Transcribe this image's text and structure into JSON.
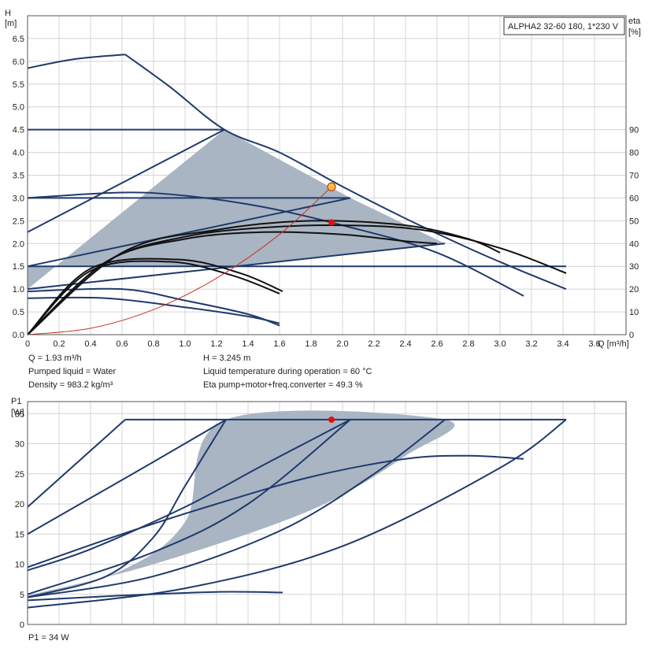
{
  "colors": {
    "curve": "#1f3a6b",
    "shade": "#a9b5c3",
    "grid": "#d4d4d4",
    "frame": "#555555",
    "black_curve": "#111111",
    "system_curve": "#cc3322",
    "operating_point": "#e01010",
    "marker_fill": "#f5c43c"
  },
  "title_box": "ALPHA2 32-60 180, 1*230 V",
  "info": {
    "q": "Q = 1.93 m³/h",
    "h": "H = 3.245 m",
    "pumped_liquid": "Pumped liquid = Water",
    "liquid_temp": "Liquid temperature during operation = 60 °C",
    "density": "Density = 983.2 kg/m³",
    "eta_total": "Eta pump+motor+freq.converter = 49.3 %",
    "p1": "P1 = 34 W"
  },
  "chart_data": [
    {
      "type": "line",
      "name": "head",
      "ylabel_lines": [
        "H",
        "[m]"
      ],
      "y2label_lines": [
        "eta",
        "[%]"
      ],
      "xlabel": "Q [m³/h]",
      "xlim": [
        0,
        3.8
      ],
      "xticks": [
        "0",
        "0.2",
        "0.4",
        "0.6",
        "0.8",
        "1.0",
        "1.2",
        "1.4",
        "1.6",
        "1.8",
        "2.0",
        "2.2",
        "2.4",
        "2.6",
        "2.8",
        "3.0",
        "3.2",
        "3.4",
        "3.6"
      ],
      "ylim": [
        0,
        7.0
      ],
      "yticks": [
        "0.0",
        "0.5",
        "1.0",
        "1.5",
        "2.0",
        "2.5",
        "3.0",
        "3.5",
        "4.0",
        "4.5",
        "5.0",
        "5.5",
        "6.0",
        "6.5"
      ],
      "y2lim": [
        0,
        140
      ],
      "y2ticks": [
        "0",
        "10",
        "20",
        "30",
        "40",
        "50",
        "60",
        "70",
        "80",
        "90"
      ],
      "grid": true,
      "shaded_region": [
        [
          0,
          1.0
        ],
        [
          1.25,
          4.5
        ],
        [
          2.05,
          3.0
        ],
        [
          2.65,
          2.0
        ],
        [
          1.3,
          1.5
        ],
        [
          0,
          1.5
        ]
      ],
      "head_curves": [
        {
          "x": [
            0,
            0.3,
            0.62
          ],
          "y": [
            5.85,
            6.05,
            6.15
          ]
        },
        {
          "x": [
            0.62,
            0.9,
            1.25,
            1.6,
            2.0,
            2.4,
            2.8,
            3.1,
            3.42
          ],
          "y": [
            6.15,
            5.45,
            4.5,
            4.0,
            3.25,
            2.55,
            1.9,
            1.45,
            1.0
          ]
        },
        {
          "x": [
            0,
            1.25
          ],
          "y": [
            4.5,
            4.5
          ]
        },
        {
          "x": [
            0,
            1.25
          ],
          "y": [
            2.25,
            4.5
          ]
        },
        {
          "x": [
            0,
            0.6,
            1.0,
            1.5,
            2.0,
            2.6,
            3.15
          ],
          "y": [
            3.0,
            3.12,
            3.05,
            2.8,
            2.4,
            1.8,
            0.85
          ]
        },
        {
          "x": [
            0,
            2.05
          ],
          "y": [
            3.0,
            3.0
          ]
        },
        {
          "x": [
            0,
            2.05
          ],
          "y": [
            1.5,
            3.0
          ]
        },
        {
          "x": [
            0,
            3.42
          ],
          "y": [
            1.5,
            1.5
          ]
        },
        {
          "x": [
            0,
            2.65
          ],
          "y": [
            1.0,
            2.0
          ]
        },
        {
          "x": [
            0,
            0.5,
            1.0,
            1.4,
            1.6
          ],
          "y": [
            0.8,
            0.8,
            0.6,
            0.4,
            0.25
          ]
        },
        {
          "x": [
            0,
            0.6,
            1.0,
            1.4,
            1.6
          ],
          "y": [
            0.95,
            1.0,
            0.75,
            0.45,
            0.2
          ]
        }
      ],
      "efficiency_curves": [
        {
          "x": [
            0,
            0.4,
            0.9,
            1.3,
            1.6
          ],
          "y": [
            0,
            1.4,
            1.6,
            1.3,
            0.9
          ]
        },
        {
          "x": [
            0,
            0.4,
            0.95,
            1.35,
            1.62
          ],
          "y": [
            0,
            1.45,
            1.65,
            1.35,
            0.95
          ]
        },
        {
          "x": [
            0,
            0.5,
            1.0,
            1.5,
            2.0,
            2.4,
            2.6
          ],
          "y": [
            0,
            1.6,
            2.1,
            2.25,
            2.2,
            2.05,
            2.0
          ]
        },
        {
          "x": [
            0,
            0.5,
            1.0,
            1.5,
            2.0,
            2.5,
            3.0,
            3.42
          ],
          "y": [
            0,
            1.6,
            2.15,
            2.35,
            2.4,
            2.3,
            1.9,
            1.35
          ]
        },
        {
          "x": [
            0,
            0.6,
            1.2,
            1.8,
            2.4,
            2.8,
            3.0
          ],
          "y": [
            0,
            1.8,
            2.3,
            2.5,
            2.4,
            2.1,
            1.8
          ]
        }
      ],
      "system_curve": {
        "x": [
          0,
          0.4,
          0.8,
          1.2,
          1.6,
          1.93
        ],
        "y": [
          0,
          0.14,
          0.55,
          1.24,
          2.2,
          3.245
        ]
      },
      "operating_point": {
        "x": 1.93,
        "y": 3.245
      },
      "eta_point": {
        "x": 1.93,
        "y": 49.3
      }
    },
    {
      "type": "line",
      "name": "power",
      "ylabel_lines": [
        "P1",
        "[W]"
      ],
      "xlim": [
        0,
        3.8
      ],
      "ylim": [
        0,
        37
      ],
      "yticks": [
        "0",
        "5",
        "10",
        "15",
        "20",
        "25",
        "30",
        "35"
      ],
      "grid": true,
      "shaded_region": [
        [
          0,
          4.5
        ],
        [
          0.6,
          9.0
        ],
        [
          1.0,
          17.0
        ],
        [
          1.26,
          34.0
        ],
        [
          2.65,
          34.0
        ],
        [
          2.4,
          28.0
        ],
        [
          1.8,
          19.0
        ],
        [
          0.8,
          10.0
        ],
        [
          0,
          4.8
        ]
      ],
      "power_curves": [
        {
          "x": [
            0,
            0.62
          ],
          "y": [
            19.5,
            34.0
          ]
        },
        {
          "x": [
            0.62,
            3.42
          ],
          "y": [
            34.0,
            34.0
          ]
        },
        {
          "x": [
            0,
            0.4,
            0.8,
            1.26
          ],
          "y": [
            15.0,
            21.0,
            27.0,
            34.0
          ]
        },
        {
          "x": [
            0,
            0.4,
            1.0,
            1.5,
            2.05
          ],
          "y": [
            9.0,
            12.5,
            19.5,
            26.5,
            34.0
          ]
        },
        {
          "x": [
            0,
            0.6,
            1.2,
            1.8,
            2.4,
            2.8,
            3.15
          ],
          "y": [
            9.5,
            15.0,
            20.0,
            24.5,
            27.5,
            28.0,
            27.5
          ]
        },
        {
          "x": [
            0,
            0.5,
            0.8,
            1.0,
            1.26
          ],
          "y": [
            4.5,
            8.0,
            14.5,
            23.0,
            34.0
          ]
        },
        {
          "x": [
            0,
            0.8,
            1.4,
            2.05
          ],
          "y": [
            5.0,
            12.0,
            20.0,
            34.0
          ]
        },
        {
          "x": [
            0,
            0.8,
            1.6,
            2.2,
            2.65
          ],
          "y": [
            4.5,
            8.0,
            15.5,
            25.0,
            34.0
          ]
        },
        {
          "x": [
            0,
            1.0,
            2.0,
            3.0,
            3.42
          ],
          "y": [
            2.8,
            6.0,
            13.0,
            26.0,
            34.0
          ]
        },
        {
          "x": [
            0,
            0.6,
            1.2,
            1.62
          ],
          "y": [
            4.0,
            4.8,
            5.4,
            5.3
          ]
        }
      ],
      "operating_point": {
        "x": 1.93,
        "y": 34
      }
    }
  ]
}
